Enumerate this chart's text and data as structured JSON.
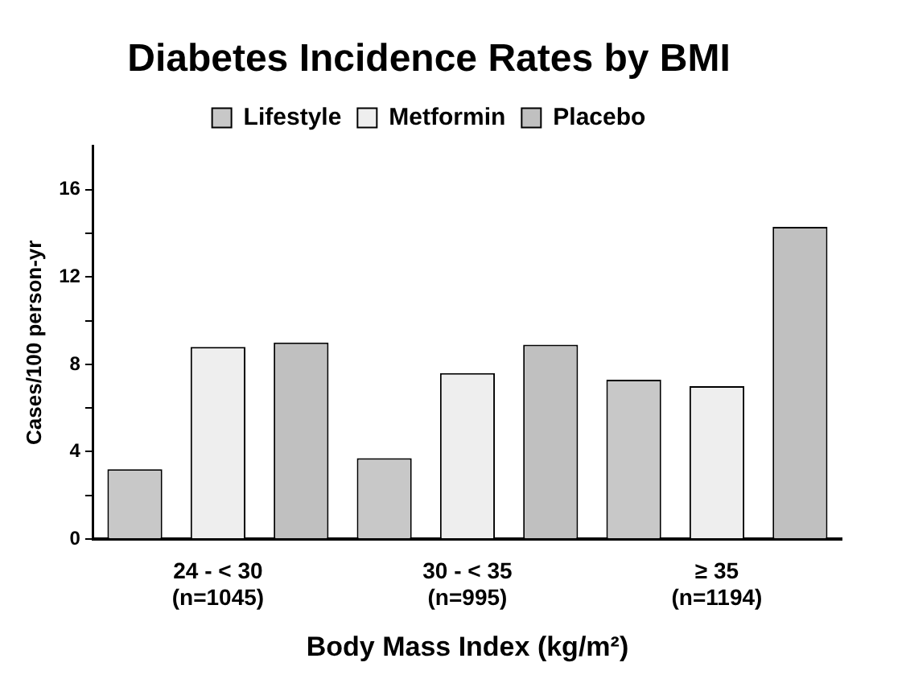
{
  "chart_data": {
    "type": "bar",
    "title": "Diabetes Incidence Rates by BMI",
    "xlabel": "Body Mass Index (kg/m²)",
    "ylabel": "Cases/100 person-yr",
    "categories": [
      "24 - < 30\n(n=1045)",
      "30 - < 35\n(n=995)",
      "≥ 35\n(n=1194)"
    ],
    "series": [
      {
        "name": "Lifestyle",
        "color": "#c8c8c8",
        "values": [
          3.2,
          3.7,
          7.3
        ]
      },
      {
        "name": "Metformin",
        "color": "#eeeeee",
        "values": [
          8.8,
          7.6,
          7.0
        ]
      },
      {
        "name": "Placebo",
        "color": "#c0c0c0",
        "values": [
          9.0,
          8.9,
          14.3
        ]
      }
    ],
    "ylim": [
      0,
      18
    ],
    "yticks": [
      0,
      {
        "value": 2,
        "label": null
      },
      4,
      {
        "value": 6,
        "label": null
      },
      8,
      {
        "value": 10,
        "label": null
      },
      12,
      {
        "value": 14,
        "label": null
      },
      16
    ],
    "grid": false,
    "legend": "top"
  }
}
